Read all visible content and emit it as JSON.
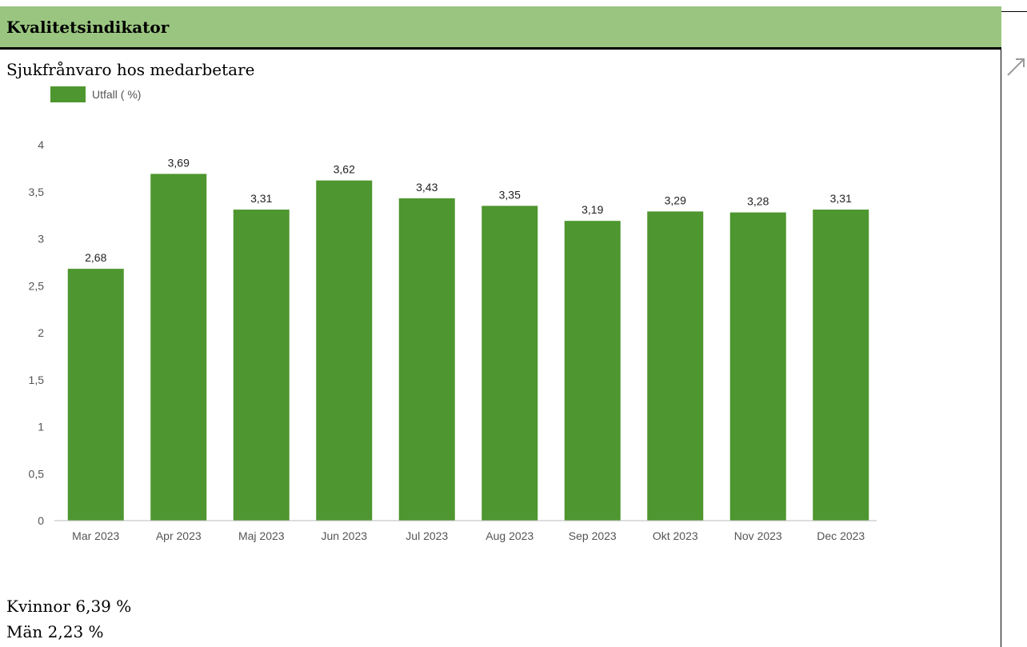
{
  "header": {
    "title": "Kvalitetsindikator"
  },
  "content": {
    "title": "Sjukfrånvaro hos medarbetare"
  },
  "notes": {
    "women": "Kvinnor 6,39 %",
    "men": "Män 2,23 %"
  },
  "colors": {
    "header_bg": "#9ac580",
    "bar": "#4e962f"
  },
  "icons": {
    "corner": "expand-arrow-icon"
  },
  "chart_data": {
    "type": "bar",
    "categories": [
      "Mar 2023",
      "Apr 2023",
      "Maj 2023",
      "Jun 2023",
      "Jul 2023",
      "Aug 2023",
      "Sep 2023",
      "Okt 2023",
      "Nov 2023",
      "Dec 2023"
    ],
    "series": [
      {
        "name": "Utfall ( %)",
        "values": [
          2.68,
          3.69,
          3.31,
          3.62,
          3.43,
          3.35,
          3.19,
          3.29,
          3.28,
          3.31
        ],
        "labels": [
          "2,68",
          "3,69",
          "3,31",
          "3,62",
          "3,43",
          "3,35",
          "3,19",
          "3,29",
          "3,28",
          "3,31"
        ]
      }
    ],
    "yticks": [
      "0",
      "0,5",
      "1",
      "1,5",
      "2",
      "2,5",
      "3",
      "3,5",
      "4"
    ],
    "ylim": [
      0,
      4
    ],
    "grid": false,
    "legend": "top-left"
  }
}
